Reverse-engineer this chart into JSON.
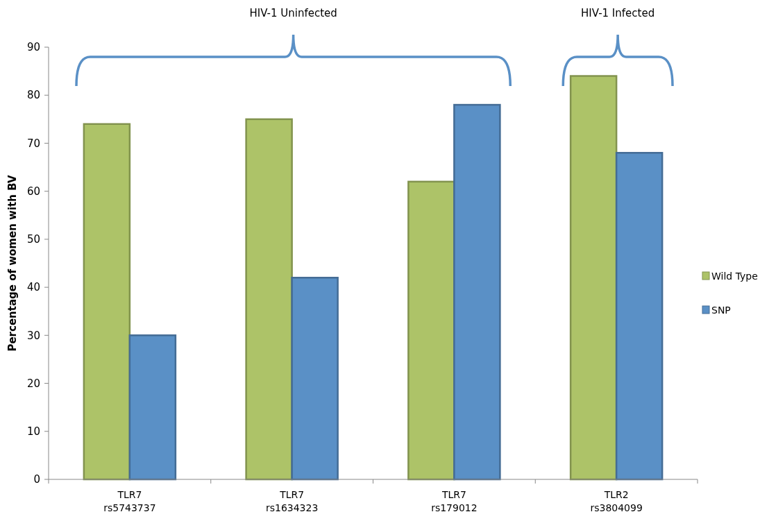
{
  "chart_data": {
    "type": "bar",
    "ylabel": "Percentage of women with BV",
    "categories": [
      "TLR7\nrs5743737",
      "TLR7\nrs1634323",
      "TLR7\nrs179012",
      "TLR2\nrs3804099"
    ],
    "series": [
      {
        "name": "Wild Type",
        "color": "#adc368",
        "values": [
          74,
          75,
          62,
          84
        ]
      },
      {
        "name": "SNP",
        "color": "#5a90c6",
        "values": [
          30,
          42,
          78,
          68
        ]
      }
    ],
    "ylim": [
      0,
      90
    ],
    "yticks": [
      0,
      10,
      20,
      30,
      40,
      50,
      60,
      70,
      80,
      90
    ],
    "grid": false,
    "legend": "right",
    "annotations": [
      "HIV-1 Uninfected",
      "HIV-1 Infected"
    ]
  }
}
